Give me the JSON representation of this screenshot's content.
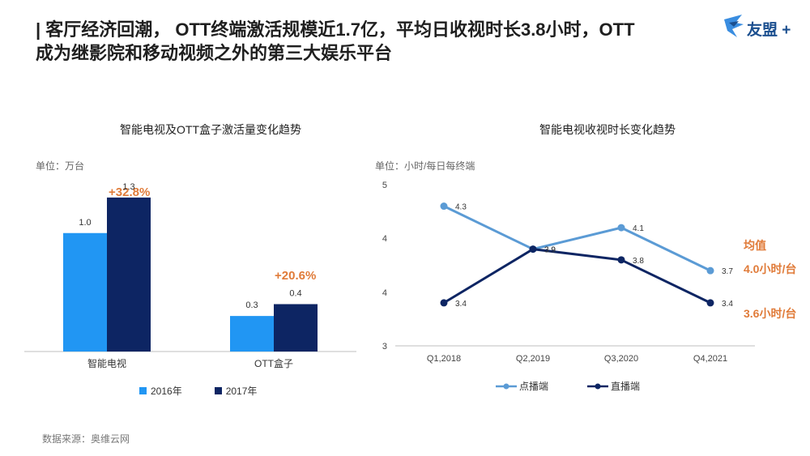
{
  "header": {
    "title_line1": "| 客厅经济回潮， OTT终端激活规模近1.7亿，平均日收视时长3.8小时，OTT",
    "title_line2": "成为继影院和移动视频之外的第三大娱乐平台",
    "logo_text": "友盟 +"
  },
  "left_chart": {
    "unit": "单位：万台",
    "growth_labels": [
      "+32.8%",
      "+20.6%"
    ]
  },
  "right_chart": {
    "unit": "单位：小时/每日每终端",
    "avg_title": "均值",
    "avg_values": [
      "4.0小时/台",
      "3.6小时/台"
    ]
  },
  "source": "数据来源：奥维云网",
  "colors": {
    "bar_2016": "#2196f3",
    "bar_2017": "#0d2563",
    "line_vod": "#5b9bd5",
    "line_live": "#0d2563",
    "accent": "#e07b39"
  },
  "chart_data": [
    {
      "type": "bar",
      "title": "智能电视及OTT盒子激活量变化趋势",
      "categories": [
        "智能电视",
        "OTT盒子"
      ],
      "series": [
        {
          "name": "2016年",
          "values": [
            1.0,
            0.3
          ]
        },
        {
          "name": "2017年",
          "values": [
            1.3,
            0.4
          ]
        }
      ],
      "ylim": [
        0,
        1.6
      ],
      "legend": "bottom"
    },
    {
      "type": "line",
      "title": "智能电视收视时长变化趋势",
      "categories": [
        "Q1,2018",
        "Q2,2019",
        "Q3,2020",
        "Q4,2021"
      ],
      "y_ticks": [
        "5",
        "4",
        "4",
        "3"
      ],
      "ylim": [
        3.0,
        4.5
      ],
      "series": [
        {
          "name": "点播端",
          "values": [
            4.3,
            3.9,
            4.1,
            3.7
          ],
          "labels": [
            "4.3",
            "3.9",
            "4.1",
            "3.7"
          ]
        },
        {
          "name": "直播端",
          "values": [
            3.4,
            3.9,
            3.8,
            3.4
          ],
          "labels": [
            "3.4",
            "3.9",
            "3.8",
            "3.4"
          ]
        }
      ],
      "legend": "bottom",
      "grid": false
    }
  ]
}
